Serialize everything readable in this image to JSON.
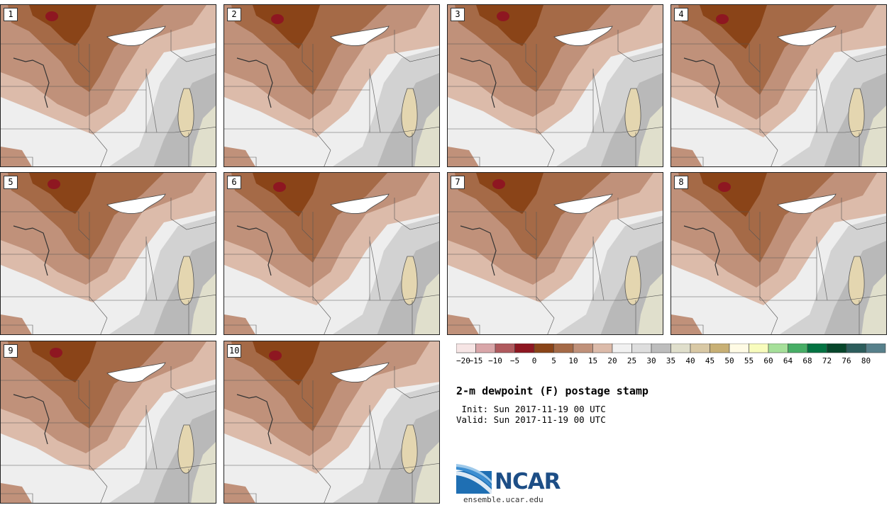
{
  "panels": [
    "1",
    "2",
    "3",
    "4",
    "5",
    "6",
    "7",
    "8",
    "9",
    "10"
  ],
  "colorbar": {
    "colors": [
      "#f6e5e5",
      "#d9a6a9",
      "#b05a5e",
      "#8e1721",
      "#8a4418",
      "#a56a47",
      "#c0917a",
      "#dcbbaa",
      "#f1f1f1",
      "#dedede",
      "#bdbdbd",
      "#e0dfcc",
      "#d9c9a5",
      "#c8b075",
      "#fffbe5",
      "#f8fcbd",
      "#a6e09a",
      "#47ae66",
      "#037342",
      "#07462b",
      "#2c5d5c",
      "#57808b"
    ],
    "ticks": [
      "-20",
      "-15",
      "-10",
      "-5",
      "0",
      "5",
      "10",
      "15",
      "20",
      "25",
      "30",
      "35",
      "40",
      "45",
      "50",
      "55",
      "60",
      "64",
      "68",
      "72",
      "76",
      "80"
    ]
  },
  "title": "2-m dewpoint (F) postage stamp",
  "init_line": " Init: Sun 2017-11-19 00 UTC",
  "valid_line": "Valid: Sun 2017-11-19 00 UTC",
  "logo": {
    "text": "NCAR",
    "url": "ensemble.ucar.edu"
  }
}
